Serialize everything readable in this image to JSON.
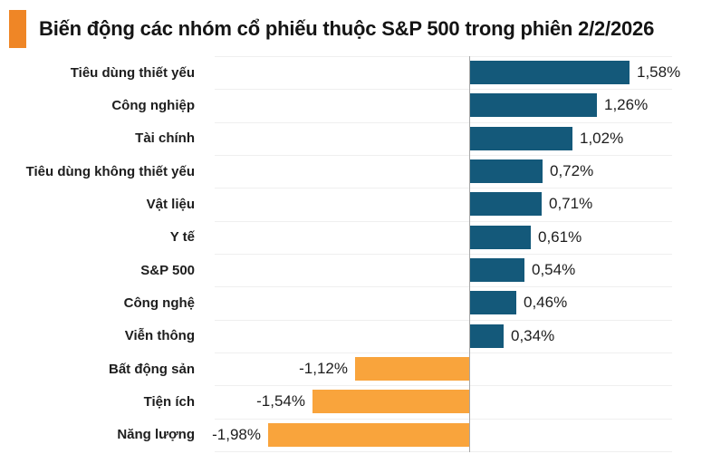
{
  "header": {
    "title": "Biến động các nhóm cổ phiếu thuộc S&P 500 trong phiên 2/2/2026",
    "accent_color": "#ef8626"
  },
  "chart_data": {
    "type": "bar",
    "orientation": "horizontal",
    "title": "Biến động các nhóm cổ phiếu thuộc S&P 500 trong phiên 2/2/2026",
    "categories": [
      "Tiêu dùng thiết yếu",
      "Công nghiệp",
      "Tài chính",
      "Tiêu dùng không thiết yếu",
      "Vật liệu",
      "Y tế",
      "S&P 500",
      "Công nghệ",
      "Viễn thông",
      "Bất động sản",
      "Tiện ích",
      "Năng lượng"
    ],
    "values": [
      1.58,
      1.26,
      1.02,
      0.72,
      0.71,
      0.61,
      0.54,
      0.46,
      0.34,
      -1.12,
      -1.54,
      -1.98
    ],
    "value_labels": [
      "1,58%",
      "1,26%",
      "1,02%",
      "0,72%",
      "0,71%",
      "0,61%",
      "0,54%",
      "0,46%",
      "0,34%",
      "-1,12%",
      "-1,54%",
      "-1,98%"
    ],
    "unit": "%",
    "xlim": [
      -2.5,
      2.0
    ],
    "grid": true,
    "legend": "none",
    "positive_color": "#14597a",
    "negative_color": "#f9a43c",
    "gridline_color": "#efefef",
    "axis_line_color": "#a8a8a8",
    "label_color": "#1d1d1d"
  }
}
